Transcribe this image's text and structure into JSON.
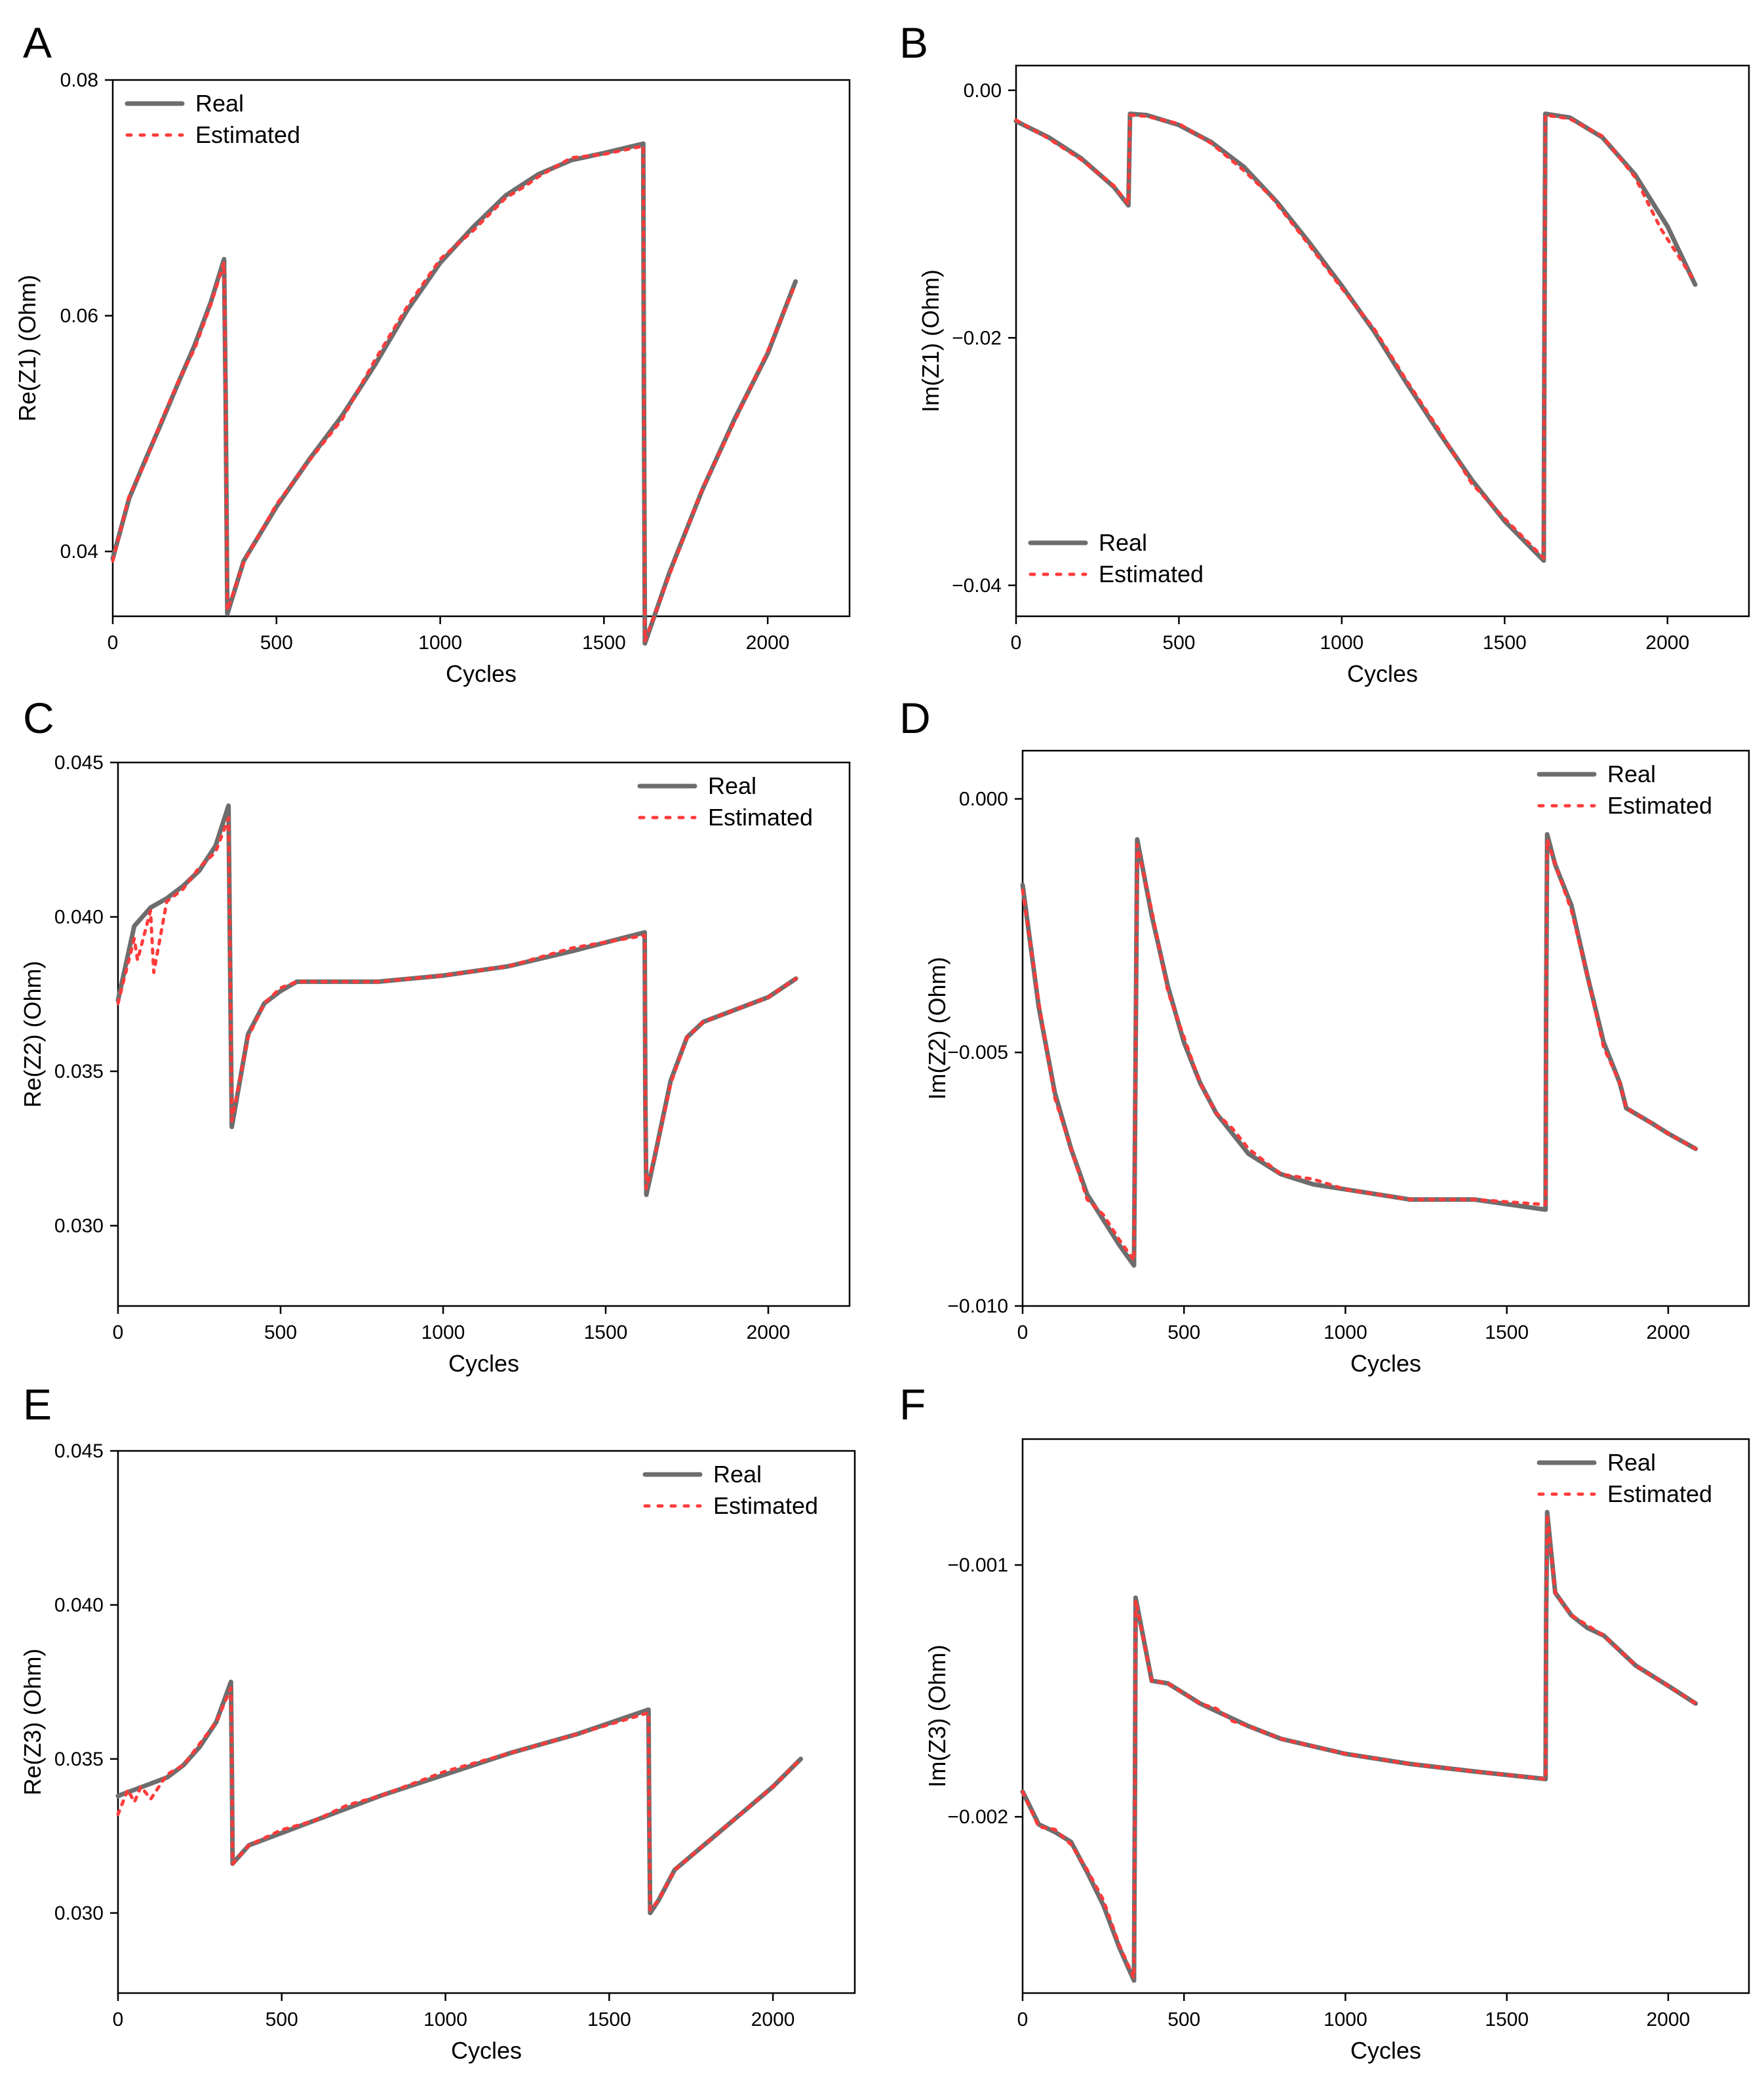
{
  "colors": {
    "real": "#6d6d6d",
    "estimated": "#ff3b3b",
    "axis": "#000000"
  },
  "chart_data": [
    {
      "panel": "A",
      "type": "line",
      "xlabel": "Cycles",
      "ylabel": "Re(Z1) (Ohm)",
      "xlim": [
        0,
        2250
      ],
      "ylim": [
        0.0345,
        0.08
      ],
      "xticks": [
        0,
        500,
        1000,
        1500,
        2000
      ],
      "xtick_labels": [
        "0",
        "500",
        "1000",
        "1500",
        "2000"
      ],
      "yticks": [
        0.04,
        0.06,
        0.08
      ],
      "ytick_labels": [
        "0.04",
        "0.06",
        "0.08"
      ],
      "legend": {
        "position": "top-left",
        "items": [
          "Real",
          "Estimated"
        ]
      },
      "series": [
        {
          "name": "Real",
          "x": [
            0,
            50,
            100,
            150,
            200,
            250,
            300,
            340,
            345,
            350,
            400,
            500,
            600,
            700,
            800,
            900,
            1000,
            1100,
            1200,
            1300,
            1400,
            1500,
            1620,
            1622,
            1625,
            1700,
            1800,
            1900,
            2000,
            2085
          ],
          "y": [
            0.0394,
            0.0445,
            0.0478,
            0.051,
            0.0543,
            0.0575,
            0.0612,
            0.0648,
            0.0528,
            0.0347,
            0.0392,
            0.0438,
            0.0478,
            0.0515,
            0.0558,
            0.0605,
            0.0645,
            0.0675,
            0.0702,
            0.072,
            0.0732,
            0.0738,
            0.0746,
            0.054,
            0.0322,
            0.0382,
            0.0452,
            0.0513,
            0.0568,
            0.0629
          ]
        },
        {
          "name": "Estimated",
          "x": [
            0,
            50,
            100,
            150,
            200,
            250,
            300,
            340,
            345,
            350,
            400,
            500,
            600,
            700,
            800,
            900,
            1000,
            1100,
            1200,
            1260,
            1300,
            1400,
            1500,
            1620,
            1622,
            1625,
            1700,
            1800,
            1900,
            2000,
            2085
          ],
          "y": [
            0.0392,
            0.0447,
            0.0476,
            0.0512,
            0.0544,
            0.0572,
            0.061,
            0.0645,
            0.0528,
            0.035,
            0.0391,
            0.044,
            0.0477,
            0.0512,
            0.0562,
            0.0608,
            0.0648,
            0.0672,
            0.07,
            0.071,
            0.0718,
            0.0734,
            0.0737,
            0.0744,
            0.054,
            0.0324,
            0.038,
            0.0453,
            0.0511,
            0.057,
            0.0627
          ]
        }
      ]
    },
    {
      "panel": "B",
      "type": "line",
      "xlabel": "Cycles",
      "ylabel": "Im(Z1) (Ohm)",
      "xlim": [
        0,
        2250
      ],
      "ylim": [
        -0.0425,
        0.002
      ],
      "xticks": [
        0,
        500,
        1000,
        1500,
        2000
      ],
      "xtick_labels": [
        "0",
        "500",
        "1000",
        "1500",
        "2000"
      ],
      "yticks": [
        -0.04,
        -0.02,
        0.0
      ],
      "ytick_labels": [
        "−0.04",
        "−0.02",
        "0.00"
      ],
      "legend": {
        "position": "bottom-left",
        "items": [
          "Real",
          "Estimated"
        ]
      },
      "series": [
        {
          "name": "Real",
          "x": [
            0,
            100,
            200,
            300,
            345,
            350,
            400,
            500,
            600,
            700,
            800,
            900,
            1000,
            1100,
            1200,
            1300,
            1400,
            1500,
            1620,
            1622,
            1625,
            1700,
            1800,
            1900,
            2000,
            2085
          ],
          "y": [
            -0.0025,
            -0.0038,
            -0.0055,
            -0.0078,
            -0.0093,
            -0.0019,
            -0.002,
            -0.0028,
            -0.0042,
            -0.0062,
            -0.009,
            -0.0123,
            -0.0158,
            -0.0195,
            -0.0237,
            -0.0277,
            -0.0315,
            -0.0348,
            -0.038,
            -0.02,
            -0.0019,
            -0.0022,
            -0.0038,
            -0.0068,
            -0.011,
            -0.0157
          ]
        },
        {
          "name": "Estimated",
          "x": [
            0,
            100,
            200,
            300,
            345,
            350,
            400,
            500,
            600,
            700,
            780,
            900,
            1000,
            1100,
            1200,
            1300,
            1400,
            1500,
            1620,
            1622,
            1625,
            1700,
            1800,
            1900,
            1980,
            2085
          ],
          "y": [
            -0.0024,
            -0.0039,
            -0.0056,
            -0.0077,
            -0.0092,
            -0.002,
            -0.0021,
            -0.0027,
            -0.0043,
            -0.0065,
            -0.0085,
            -0.0125,
            -0.016,
            -0.0193,
            -0.0235,
            -0.0275,
            -0.0318,
            -0.0346,
            -0.0378,
            -0.02,
            -0.002,
            -0.0023,
            -0.0037,
            -0.007,
            -0.0112,
            -0.0155
          ]
        }
      ]
    },
    {
      "panel": "C",
      "type": "line",
      "xlabel": "Cycles",
      "ylabel": "Re(Z2) (Ohm)",
      "xlim": [
        0,
        2250
      ],
      "ylim": [
        0.0274,
        0.045
      ],
      "xticks": [
        0,
        500,
        1000,
        1500,
        2000
      ],
      "xtick_labels": [
        "0",
        "500",
        "1000",
        "1500",
        "2000"
      ],
      "yticks": [
        0.03,
        0.035,
        0.04,
        0.045
      ],
      "ytick_labels": [
        "0.030",
        "0.035",
        "0.040",
        "0.045"
      ],
      "legend": {
        "position": "top-right",
        "items": [
          "Real",
          "Estimated"
        ]
      },
      "series": [
        {
          "name": "Real",
          "x": [
            0,
            50,
            100,
            150,
            200,
            250,
            300,
            340,
            345,
            350,
            400,
            450,
            500,
            550,
            600,
            800,
            1000,
            1200,
            1400,
            1620,
            1622,
            1625,
            1650,
            1700,
            1750,
            1800,
            1900,
            2000,
            2085
          ],
          "y": [
            0.0373,
            0.0397,
            0.0403,
            0.0406,
            0.041,
            0.0415,
            0.0423,
            0.0436,
            0.0384,
            0.0332,
            0.0362,
            0.0372,
            0.0376,
            0.0379,
            0.0379,
            0.0379,
            0.0381,
            0.0384,
            0.0389,
            0.0395,
            0.034,
            0.031,
            0.0322,
            0.0347,
            0.0361,
            0.0366,
            0.037,
            0.0374,
            0.038
          ]
        },
        {
          "name": "Estimated",
          "x": [
            0,
            50,
            60,
            100,
            110,
            150,
            200,
            250,
            300,
            340,
            345,
            350,
            400,
            450,
            500,
            550,
            600,
            800,
            1000,
            1200,
            1400,
            1620,
            1622,
            1625,
            1650,
            1700,
            1750,
            1800,
            1900,
            2000,
            2085
          ],
          "y": [
            0.0372,
            0.0393,
            0.0386,
            0.0402,
            0.0382,
            0.0405,
            0.0409,
            0.0416,
            0.0421,
            0.0432,
            0.0384,
            0.0334,
            0.0361,
            0.0372,
            0.0377,
            0.0379,
            0.0379,
            0.0379,
            0.0381,
            0.0384,
            0.039,
            0.0394,
            0.034,
            0.0312,
            0.0322,
            0.0346,
            0.0361,
            0.0366,
            0.037,
            0.0374,
            0.038
          ]
        }
      ]
    },
    {
      "panel": "D",
      "type": "line",
      "xlabel": "Cycles",
      "ylabel": "Im(Z2) (Ohm)",
      "xlim": [
        0,
        2250
      ],
      "ylim": [
        -0.01,
        0.00095
      ],
      "xticks": [
        0,
        500,
        1000,
        1500,
        2000
      ],
      "xtick_labels": [
        "0",
        "500",
        "1000",
        "1500",
        "2000"
      ],
      "yticks": [
        -0.01,
        -0.005,
        0.0
      ],
      "ytick_labels": [
        "−0.010",
        "−0.005",
        "0.000"
      ],
      "legend": {
        "position": "top-right",
        "items": [
          "Real",
          "Estimated"
        ]
      },
      "series": [
        {
          "name": "Real",
          "x": [
            0,
            50,
            100,
            150,
            200,
            250,
            300,
            345,
            350,
            355,
            400,
            450,
            500,
            550,
            600,
            650,
            700,
            800,
            900,
            1000,
            1200,
            1400,
            1620,
            1622,
            1625,
            1650,
            1700,
            1750,
            1800,
            1850,
            1870,
            1950,
            2000,
            2085
          ],
          "y": [
            -0.0017,
            -0.0041,
            -0.0058,
            -0.0069,
            -0.0078,
            -0.0083,
            -0.0088,
            -0.0092,
            -0.005,
            -0.0008,
            -0.0023,
            -0.0037,
            -0.0048,
            -0.0056,
            -0.0062,
            -0.0066,
            -0.007,
            -0.0074,
            -0.0076,
            -0.0077,
            -0.0079,
            -0.0079,
            -0.0081,
            -0.004,
            -0.0007,
            -0.0013,
            -0.0021,
            -0.0035,
            -0.0048,
            -0.0056,
            -0.0061,
            -0.0064,
            -0.0066,
            -0.0069
          ]
        },
        {
          "name": "Estimated",
          "x": [
            0,
            50,
            100,
            130,
            200,
            250,
            300,
            345,
            350,
            355,
            400,
            450,
            500,
            550,
            600,
            650,
            700,
            800,
            900,
            1000,
            1200,
            1400,
            1620,
            1622,
            1625,
            1650,
            1700,
            1750,
            1800,
            1850,
            1870,
            1950,
            2000,
            2085
          ],
          "y": [
            -0.0018,
            -0.004,
            -0.0059,
            -0.0065,
            -0.0079,
            -0.0082,
            -0.0087,
            -0.0091,
            -0.005,
            -0.0009,
            -0.0022,
            -0.0038,
            -0.0047,
            -0.0056,
            -0.0062,
            -0.0065,
            -0.0069,
            -0.0074,
            -0.0075,
            -0.0077,
            -0.0079,
            -0.0079,
            -0.008,
            -0.004,
            -0.0008,
            -0.0013,
            -0.0022,
            -0.0035,
            -0.0049,
            -0.0056,
            -0.0061,
            -0.0064,
            -0.0066,
            -0.0069
          ]
        }
      ]
    },
    {
      "panel": "E",
      "type": "line",
      "xlabel": "Cycles",
      "ylabel": "Re(Z3) (Ohm)",
      "xlim": [
        0,
        2250
      ],
      "ylim": [
        0.0274,
        0.045
      ],
      "xticks": [
        0,
        500,
        1000,
        1500,
        2000
      ],
      "xtick_labels": [
        "0",
        "500",
        "1000",
        "1500",
        "2000"
      ],
      "yticks": [
        0.03,
        0.035,
        0.04,
        0.045
      ],
      "ytick_labels": [
        "0.030",
        "0.035",
        "0.040",
        "0.045"
      ],
      "legend": {
        "position": "top-right",
        "items": [
          "Real",
          "Estimated"
        ]
      },
      "series": [
        {
          "name": "Real",
          "x": [
            0,
            50,
            100,
            150,
            200,
            250,
            300,
            345,
            348,
            350,
            400,
            500,
            600,
            700,
            800,
            1000,
            1200,
            1400,
            1620,
            1622,
            1625,
            1650,
            1700,
            1800,
            1900,
            2000,
            2085
          ],
          "y": [
            0.0338,
            0.034,
            0.0342,
            0.0344,
            0.0348,
            0.0354,
            0.0362,
            0.0375,
            0.0345,
            0.0316,
            0.0322,
            0.0326,
            0.033,
            0.0334,
            0.0338,
            0.0345,
            0.0352,
            0.0358,
            0.0366,
            0.0333,
            0.03,
            0.0304,
            0.0314,
            0.0323,
            0.0332,
            0.0341,
            0.035
          ]
        },
        {
          "name": "Estimated",
          "x": [
            0,
            30,
            50,
            70,
            100,
            150,
            200,
            250,
            300,
            345,
            348,
            350,
            400,
            500,
            600,
            700,
            800,
            1000,
            1200,
            1400,
            1620,
            1622,
            1625,
            1650,
            1700,
            1800,
            1900,
            2000,
            2085
          ],
          "y": [
            0.0332,
            0.034,
            0.0336,
            0.0341,
            0.0337,
            0.0345,
            0.0348,
            0.0355,
            0.0362,
            0.0373,
            0.0345,
            0.0316,
            0.0322,
            0.0327,
            0.033,
            0.0335,
            0.0338,
            0.0346,
            0.0352,
            0.0358,
            0.0365,
            0.0333,
            0.0301,
            0.0304,
            0.0314,
            0.0323,
            0.0332,
            0.0341,
            0.035
          ]
        }
      ]
    },
    {
      "panel": "F",
      "type": "line",
      "xlabel": "Cycles",
      "ylabel": "Im(Z3) (Ohm)",
      "xlim": [
        0,
        2250
      ],
      "ylim": [
        -0.0027,
        -0.0005
      ],
      "xticks": [
        0,
        500,
        1000,
        1500,
        2000
      ],
      "xtick_labels": [
        "0",
        "500",
        "1000",
        "1500",
        "2000"
      ],
      "yticks": [
        -0.002,
        -0.001
      ],
      "ytick_labels": [
        "−0.002",
        "−0.001"
      ],
      "legend": {
        "position": "top-right",
        "items": [
          "Real",
          "Estimated"
        ]
      },
      "series": [
        {
          "name": "Real",
          "x": [
            0,
            50,
            100,
            150,
            200,
            250,
            300,
            345,
            348,
            350,
            400,
            450,
            500,
            550,
            600,
            700,
            800,
            1000,
            1200,
            1400,
            1620,
            1622,
            1625,
            1650,
            1700,
            1750,
            1800,
            1850,
            1900,
            1950,
            2000,
            2085
          ],
          "y": [
            -0.0019,
            -0.00203,
            -0.00206,
            -0.0021,
            -0.00222,
            -0.00235,
            -0.00252,
            -0.00265,
            -0.0019,
            -0.00113,
            -0.00146,
            -0.00147,
            -0.00151,
            -0.00155,
            -0.00158,
            -0.00164,
            -0.00169,
            -0.00175,
            -0.00179,
            -0.00182,
            -0.00185,
            -0.0012,
            -0.00079,
            -0.00111,
            -0.0012,
            -0.00125,
            -0.00128,
            -0.00134,
            -0.0014,
            -0.00144,
            -0.00148,
            -0.00155
          ]
        },
        {
          "name": "Estimated",
          "x": [
            0,
            50,
            100,
            150,
            200,
            250,
            300,
            345,
            348,
            350,
            400,
            450,
            500,
            550,
            600,
            650,
            700,
            800,
            900,
            1000,
            1200,
            1400,
            1620,
            1622,
            1625,
            1650,
            1700,
            1750,
            1800,
            1850,
            1900,
            1950,
            2000,
            2085
          ],
          "y": [
            -0.0019,
            -0.00204,
            -0.00205,
            -0.00211,
            -0.00221,
            -0.00233,
            -0.00251,
            -0.00264,
            -0.0019,
            -0.00114,
            -0.00146,
            -0.00147,
            -0.00151,
            -0.00155,
            -0.00157,
            -0.00162,
            -0.00164,
            -0.00169,
            -0.00172,
            -0.00175,
            -0.00179,
            -0.00182,
            -0.00185,
            -0.0012,
            -0.0008,
            -0.00111,
            -0.0012,
            -0.00124,
            -0.00128,
            -0.00134,
            -0.0014,
            -0.00144,
            -0.00148,
            -0.00155
          ]
        }
      ]
    }
  ]
}
